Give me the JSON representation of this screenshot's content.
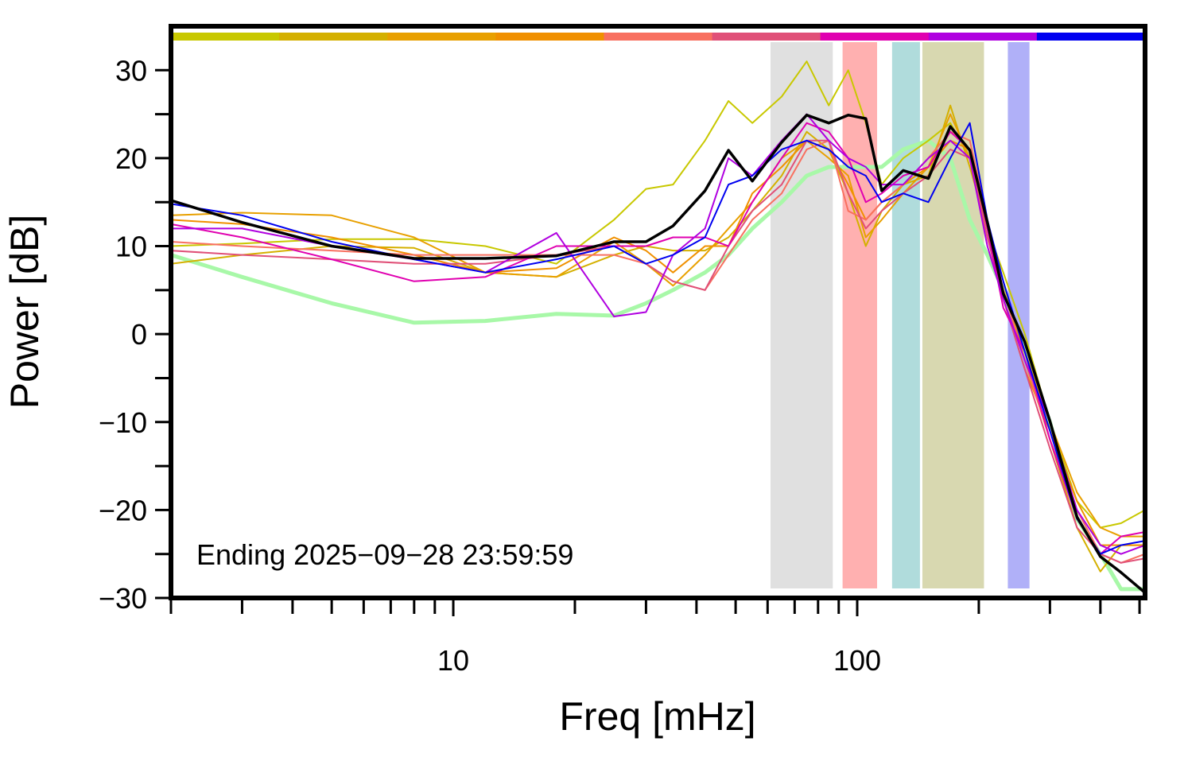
{
  "chart_data": {
    "type": "line",
    "xlabel": "Freq [mHz]",
    "ylabel": "Power [dB]",
    "annotation": "Ending 2025−09−28 23:59:59",
    "xscale": "log",
    "xlim": [
      2,
      516
    ],
    "ylim": [
      -30,
      35
    ],
    "xticks": [
      10,
      100
    ],
    "xminor_ticks": [
      2,
      3,
      4,
      5,
      6,
      7,
      8,
      9,
      20,
      30,
      40,
      50,
      60,
      70,
      80,
      90,
      200,
      300,
      400,
      500
    ],
    "yticks": [
      {
        "value": 30,
        "label": "30"
      },
      {
        "value": 20,
        "label": "20"
      },
      {
        "value": 10,
        "label": "10"
      },
      {
        "value": 0,
        "label": "0"
      },
      {
        "value": -10,
        "label": "−10"
      },
      {
        "value": -20,
        "label": "−20"
      },
      {
        "value": -30,
        "label": "−30"
      }
    ],
    "yminor_ticks": [
      25,
      15,
      5,
      -5,
      -15,
      -25
    ],
    "color_bar": [
      "#c8c800",
      "#d4b000",
      "#e8a000",
      "#f09000",
      "#f87060",
      "#e05078",
      "#e000b0",
      "#b000e0",
      "#0000f0"
    ],
    "bands": [
      {
        "xlim": [
          61,
          87
        ],
        "color": "#e0e0e0"
      },
      {
        "xlim": [
          92,
          112
        ],
        "color": "#ffb0b0"
      },
      {
        "xlim": [
          122,
          143
        ],
        "color": "#b0dcdc"
      },
      {
        "xlim": [
          145,
          206
        ],
        "color": "#d8d8b0"
      },
      {
        "xlim": [
          236,
          267
        ],
        "color": "#b0b0f8"
      }
    ],
    "x": [
      2,
      3,
      5,
      8,
      12,
      18,
      25,
      30,
      35,
      42,
      48,
      55,
      65,
      75,
      85,
      95,
      105,
      115,
      130,
      150,
      170,
      190,
      210,
      230,
      260,
      300,
      350,
      400,
      450,
      516
    ],
    "series": [
      {
        "color": "#a8f8a8",
        "width": 5,
        "values": [
          9,
          6.5,
          3.5,
          1.3,
          1.5,
          2.3,
          2.1,
          3.5,
          5,
          7,
          9,
          12,
          15,
          18,
          19,
          19,
          19,
          19,
          21,
          22,
          20,
          13,
          9,
          5,
          -2,
          -10,
          -21,
          -25,
          -29,
          -29
        ]
      },
      {
        "color": "#c8c800",
        "width": 2,
        "values": [
          10,
          10.3,
          10.8,
          10.8,
          10,
          8,
          13,
          16.5,
          17,
          22,
          26.5,
          24,
          27,
          31,
          26,
          30,
          24,
          17,
          20,
          22,
          24,
          20,
          12,
          7,
          0,
          -10,
          -19,
          -22,
          -21.5,
          -20
        ]
      },
      {
        "color": "#d4b000",
        "width": 2,
        "values": [
          8,
          9,
          10,
          9.8,
          7,
          6.5,
          9,
          10,
          9.5,
          9.5,
          11,
          14,
          18,
          23,
          21,
          16,
          10,
          14,
          17,
          18,
          26,
          19,
          12,
          6,
          -3,
          -12,
          -22,
          -27,
          -24,
          -24
        ]
      },
      {
        "color": "#e8a000",
        "width": 2,
        "values": [
          13.5,
          13.8,
          13.5,
          11,
          7,
          6.5,
          10.5,
          8,
          5.5,
          9,
          12,
          15,
          20,
          22,
          20,
          18,
          11,
          13,
          16,
          19,
          25,
          20,
          11,
          5,
          -2,
          -10,
          -18,
          -22,
          -23,
          -23
        ]
      },
      {
        "color": "#f09000",
        "width": 2,
        "values": [
          13,
          12.5,
          11,
          9,
          7,
          7.5,
          11,
          9.5,
          7,
          10,
          10,
          16,
          19,
          22,
          21,
          17,
          13,
          15,
          17,
          19,
          22,
          21,
          12,
          4,
          -4,
          -11,
          -19,
          -24,
          -24,
          -24
        ]
      },
      {
        "color": "#f87060",
        "width": 2,
        "values": [
          10.5,
          10,
          9.5,
          9,
          9,
          9,
          9,
          8,
          6,
          5,
          9,
          13,
          16,
          21,
          22,
          14,
          13,
          15,
          17,
          20,
          23,
          22,
          13,
          5,
          -3,
          -12,
          -20,
          -25,
          -26,
          -25
        ]
      },
      {
        "color": "#e05078",
        "width": 2,
        "values": [
          9.5,
          9,
          8.5,
          8,
          8,
          9,
          10,
          8,
          6,
          5,
          10,
          14,
          17,
          22,
          22,
          16,
          12,
          14,
          16,
          18,
          21,
          20,
          11,
          4,
          -4,
          -13,
          -22,
          -25,
          -26,
          -25.5
        ]
      },
      {
        "color": "#e000b0",
        "width": 2,
        "values": [
          12.5,
          11,
          8.5,
          6,
          6.5,
          10,
          10,
          10,
          11,
          11,
          10,
          15,
          20,
          24,
          23,
          20,
          15,
          16,
          18,
          19,
          23,
          21,
          12,
          3,
          -2,
          -12,
          -21,
          -25,
          -23,
          -22.5
        ]
      },
      {
        "color": "#b000e0",
        "width": 2,
        "values": [
          12,
          12,
          10,
          8.5,
          7,
          11.5,
          2,
          2.5,
          9,
          12,
          20,
          18,
          22,
          25,
          22,
          20,
          19,
          17,
          17,
          20,
          22,
          20,
          10,
          4,
          -3,
          -10,
          -20,
          -24,
          -25,
          -24
        ]
      },
      {
        "color": "#0000f0",
        "width": 2,
        "values": [
          14.8,
          13.5,
          10.5,
          8.5,
          7,
          8.5,
          10,
          8,
          9,
          11,
          17,
          18,
          21,
          22,
          21,
          19,
          18,
          15,
          16,
          15,
          20,
          24,
          13,
          6,
          -2,
          -11,
          -21,
          -25,
          -24,
          -23.5
        ]
      },
      {
        "color": "#000000",
        "width": 3.5,
        "values": [
          15.2,
          12.7,
          10,
          8.6,
          8.6,
          8.9,
          10.5,
          10.5,
          12.3,
          16.3,
          20.9,
          17.4,
          21.8,
          24.9,
          24,
          24.9,
          24.5,
          16.3,
          18.6,
          17.7,
          23.6,
          20.9,
          12.7,
          4.6,
          -0.9,
          -9.9,
          -20.8,
          -25.3,
          -27.1,
          -29.4
        ]
      }
    ]
  }
}
